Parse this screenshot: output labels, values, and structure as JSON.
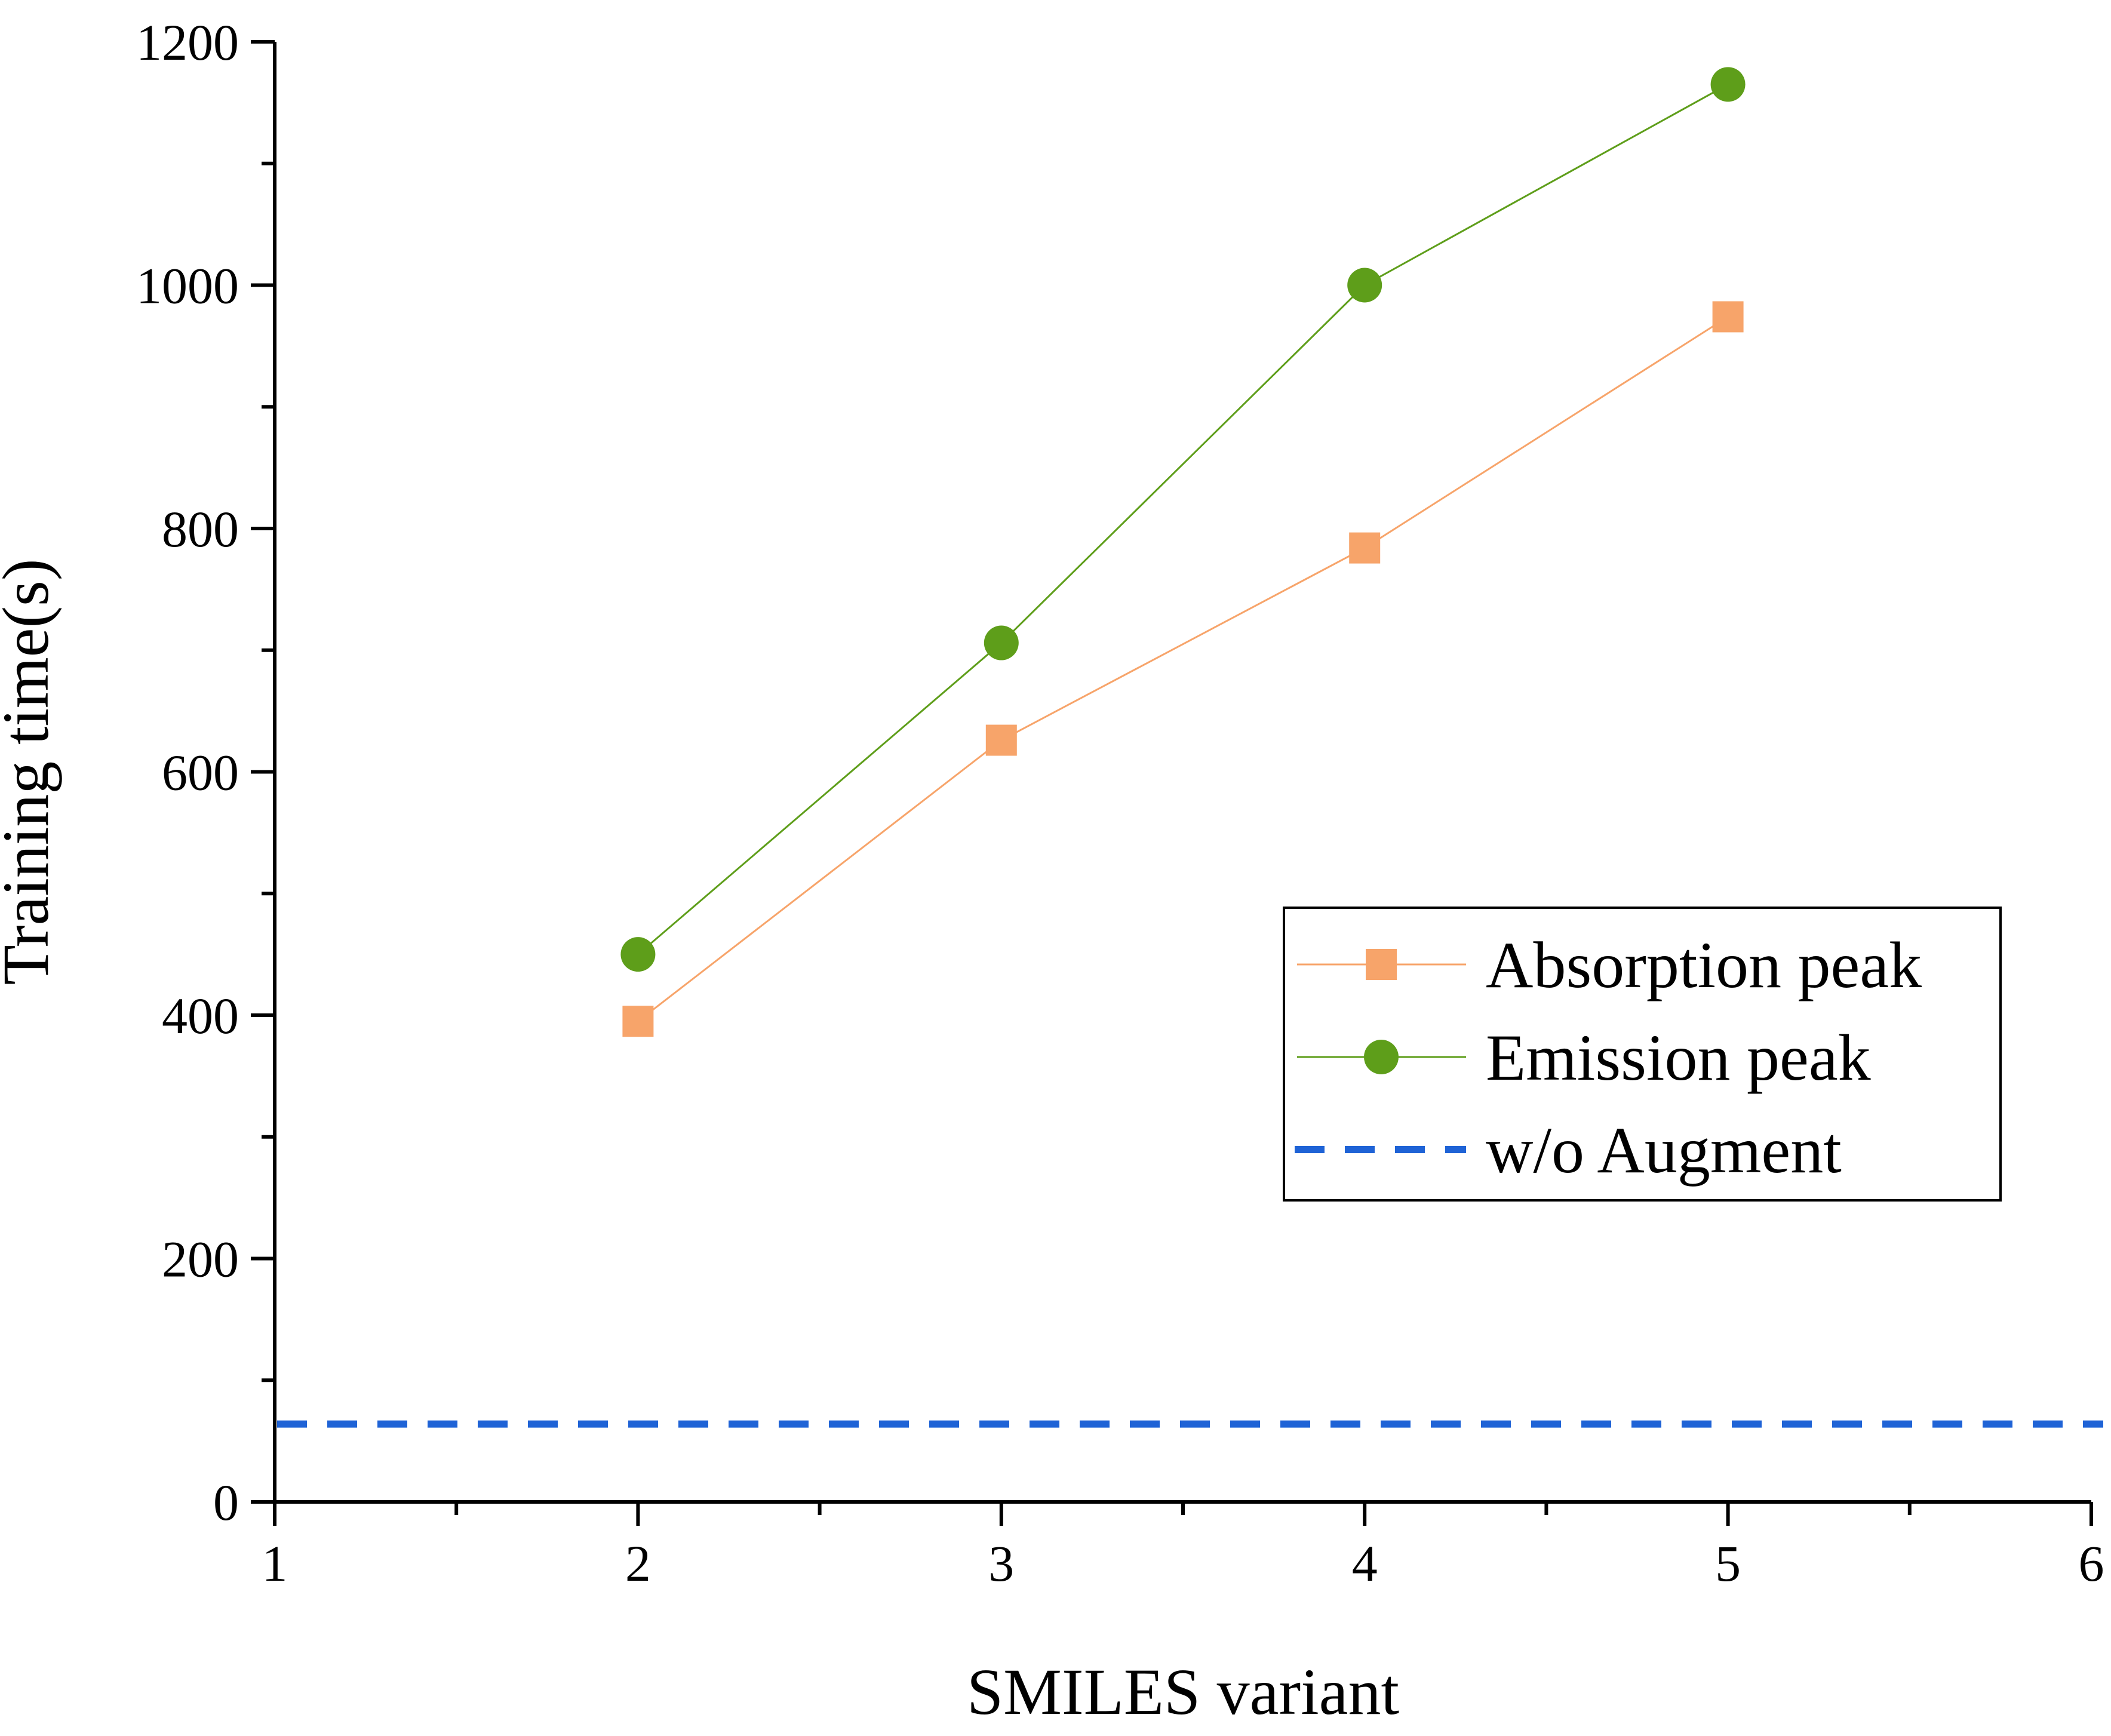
{
  "chart_data": {
    "type": "line",
    "title": "",
    "xlabel": "SMILES variant",
    "ylabel": "Training time(s)",
    "xlim": [
      1,
      6
    ],
    "ylim": [
      0,
      1200
    ],
    "xticks": [
      1,
      2,
      3,
      4,
      5,
      6
    ],
    "yticks": [
      0,
      200,
      400,
      600,
      800,
      1000,
      1200
    ],
    "legend_position": "center-right",
    "grid": false,
    "series": [
      {
        "name": "Absorption peak",
        "marker": "square",
        "color": "#F7A46A",
        "x": [
          2,
          3,
          4,
          5
        ],
        "values": [
          395,
          626,
          784,
          974
        ]
      },
      {
        "name": "Emission peak",
        "marker": "circle",
        "color": "#5E9E1A",
        "x": [
          2,
          3,
          4,
          5
        ],
        "values": [
          450,
          706,
          1000,
          1165
        ]
      },
      {
        "name": "w/o Augment",
        "marker": "none",
        "style": "dashed",
        "color": "#1F63D6",
        "constant": 64
      }
    ]
  }
}
